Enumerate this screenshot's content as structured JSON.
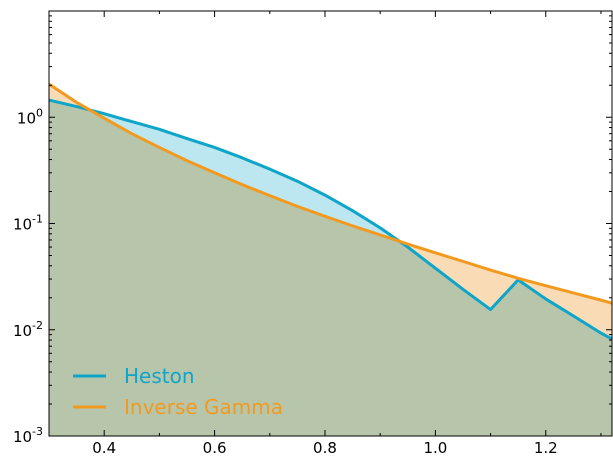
{
  "chart_data": {
    "type": "area",
    "title": "",
    "xlabel": "",
    "ylabel": "",
    "xlim": [
      0.3,
      1.32
    ],
    "ylim": [
      0.001,
      10
    ],
    "yscale": "log",
    "grid": false,
    "legend": "lower-left",
    "x_ticks": [
      {
        "value": 0.4,
        "label": "0.4"
      },
      {
        "value": 0.6,
        "label": "0.6"
      },
      {
        "value": 0.8,
        "label": "0.8"
      },
      {
        "value": 1.0,
        "label": "1.0"
      },
      {
        "value": 1.2,
        "label": "1.2"
      }
    ],
    "y_ticks": [
      {
        "value": 0.001,
        "base": "10",
        "exp": "-3"
      },
      {
        "value": 0.01,
        "base": "10",
        "exp": "-2"
      },
      {
        "value": 0.1,
        "base": "10",
        "exp": "-1"
      },
      {
        "value": 1,
        "base": "10",
        "exp": "0"
      }
    ],
    "series": [
      {
        "name": "Heston",
        "color": "#0ea5c9",
        "fill": "#bce6f0",
        "x": [
          0.3,
          0.35,
          0.4,
          0.45,
          0.5,
          0.55,
          0.6,
          0.65,
          0.7,
          0.75,
          0.8,
          0.85,
          0.9,
          0.95,
          1.0,
          1.05,
          1.1,
          1.15,
          1.2,
          1.25,
          1.3,
          1.32
        ],
        "y": [
          1.45,
          1.26,
          1.08,
          0.91,
          0.77,
          0.63,
          0.52,
          0.415,
          0.325,
          0.25,
          0.185,
          0.132,
          0.091,
          0.06,
          0.038,
          0.024,
          0.0155,
          0.0295,
          0.0195,
          0.0135,
          0.0093,
          0.0082
        ]
      },
      {
        "name": "Inverse Gamma",
        "color": "#f29a1f",
        "fill": "#f9dbb6",
        "x": [
          0.3,
          0.35,
          0.4,
          0.45,
          0.5,
          0.55,
          0.6,
          0.65,
          0.7,
          0.75,
          0.8,
          0.85,
          0.9,
          0.95,
          1.0,
          1.05,
          1.1,
          1.15,
          1.2,
          1.25,
          1.3,
          1.32
        ],
        "y": [
          2.05,
          1.38,
          0.98,
          0.7,
          0.52,
          0.39,
          0.3,
          0.232,
          0.183,
          0.145,
          0.117,
          0.095,
          0.078,
          0.064,
          0.053,
          0.044,
          0.0365,
          0.0305,
          0.026,
          0.0222,
          0.019,
          0.0178
        ]
      }
    ]
  }
}
